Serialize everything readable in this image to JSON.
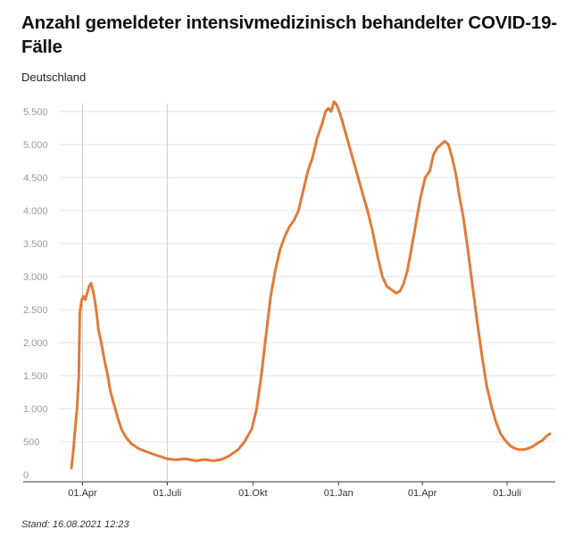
{
  "header": {
    "title": "Anzahl gemeldeter intensivmedizinisch behandelter COVID-19-Fälle",
    "subtitle": "Deutschland"
  },
  "footer": {
    "source": "Stand: 16.08.2021 12:23"
  },
  "colors": {
    "line": "#e07b3a",
    "grid": "#e4e4e4",
    "axis": "#333333",
    "marker": "#cccccc"
  },
  "chart_data": {
    "type": "line",
    "title": "Anzahl gemeldeter intensivmedizinisch behandelter COVID-19-Fälle",
    "subtitle": "Deutschland",
    "xlabel": "",
    "ylabel": "",
    "ylim": [
      0,
      5500
    ],
    "grid": true,
    "yticks": [
      {
        "value": 0,
        "label": "0"
      },
      {
        "value": 500,
        "label": "500"
      },
      {
        "value": 1000,
        "label": "1.000"
      },
      {
        "value": 1500,
        "label": "1.500"
      },
      {
        "value": 2000,
        "label": "2.000"
      },
      {
        "value": 2500,
        "label": "2.500"
      },
      {
        "value": 3000,
        "label": "3.000"
      },
      {
        "value": 3500,
        "label": "3.500"
      },
      {
        "value": 4000,
        "label": "4.000"
      },
      {
        "value": 4500,
        "label": "4.500"
      },
      {
        "value": 5000,
        "label": "5.000"
      },
      {
        "value": 5500,
        "label": "5.500"
      }
    ],
    "xticks": [
      {
        "date": "2020-04-01",
        "label": "01.Apr"
      },
      {
        "date": "2020-07-01",
        "label": "01.Juli"
      },
      {
        "date": "2020-10-01",
        "label": "01.Okt"
      },
      {
        "date": "2021-01-01",
        "label": "01.Jan"
      },
      {
        "date": "2021-04-01",
        "label": "01.Apr"
      },
      {
        "date": "2021-07-01",
        "label": "01.Juli"
      }
    ],
    "xlim": [
      "2020-03-20",
      "2021-08-16"
    ],
    "markers": [
      "2020-04-01",
      "2020-07-01"
    ],
    "series": [
      {
        "points": [
          [
            "2020-03-20",
            100
          ],
          [
            "2020-03-22",
            350
          ],
          [
            "2020-03-24",
            700
          ],
          [
            "2020-03-26",
            1000
          ],
          [
            "2020-03-28",
            1500
          ],
          [
            "2020-03-29",
            2450
          ],
          [
            "2020-03-31",
            2650
          ],
          [
            "2020-04-02",
            2700
          ],
          [
            "2020-04-04",
            2650
          ],
          [
            "2020-04-06",
            2750
          ],
          [
            "2020-04-08",
            2850
          ],
          [
            "2020-04-10",
            2900
          ],
          [
            "2020-04-12",
            2800
          ],
          [
            "2020-04-14",
            2650
          ],
          [
            "2020-04-16",
            2450
          ],
          [
            "2020-04-18",
            2200
          ],
          [
            "2020-04-21",
            2000
          ],
          [
            "2020-04-25",
            1700
          ],
          [
            "2020-04-28",
            1500
          ],
          [
            "2020-05-01",
            1250
          ],
          [
            "2020-05-05",
            1050
          ],
          [
            "2020-05-09",
            850
          ],
          [
            "2020-05-13",
            680
          ],
          [
            "2020-05-18",
            560
          ],
          [
            "2020-05-24",
            460
          ],
          [
            "2020-06-01",
            390
          ],
          [
            "2020-06-10",
            340
          ],
          [
            "2020-06-20",
            290
          ],
          [
            "2020-07-01",
            240
          ],
          [
            "2020-07-10",
            225
          ],
          [
            "2020-07-20",
            240
          ],
          [
            "2020-08-01",
            210
          ],
          [
            "2020-08-10",
            230
          ],
          [
            "2020-08-20",
            210
          ],
          [
            "2020-08-28",
            230
          ],
          [
            "2020-09-05",
            280
          ],
          [
            "2020-09-15",
            380
          ],
          [
            "2020-09-22",
            500
          ],
          [
            "2020-09-30",
            700
          ],
          [
            "2020-10-05",
            1000
          ],
          [
            "2020-10-10",
            1500
          ],
          [
            "2020-10-15",
            2100
          ],
          [
            "2020-10-20",
            2700
          ],
          [
            "2020-10-25",
            3100
          ],
          [
            "2020-10-30",
            3400
          ],
          [
            "2020-11-04",
            3600
          ],
          [
            "2020-11-09",
            3750
          ],
          [
            "2020-11-14",
            3850
          ],
          [
            "2020-11-19",
            4000
          ],
          [
            "2020-11-24",
            4300
          ],
          [
            "2020-11-29",
            4600
          ],
          [
            "2020-12-04",
            4800
          ],
          [
            "2020-12-09",
            5100
          ],
          [
            "2020-12-14",
            5300
          ],
          [
            "2020-12-18",
            5500
          ],
          [
            "2020-12-21",
            5550
          ],
          [
            "2020-12-24",
            5500
          ],
          [
            "2020-12-27",
            5650
          ],
          [
            "2020-12-30",
            5600
          ],
          [
            "2021-01-03",
            5450
          ],
          [
            "2021-01-08",
            5200
          ],
          [
            "2021-01-13",
            4950
          ],
          [
            "2021-01-18",
            4700
          ],
          [
            "2021-01-23",
            4450
          ],
          [
            "2021-01-28",
            4200
          ],
          [
            "2021-02-02",
            3950
          ],
          [
            "2021-02-07",
            3650
          ],
          [
            "2021-02-12",
            3300
          ],
          [
            "2021-02-17",
            3000
          ],
          [
            "2021-02-22",
            2850
          ],
          [
            "2021-02-27",
            2800
          ],
          [
            "2021-03-04",
            2750
          ],
          [
            "2021-03-08",
            2780
          ],
          [
            "2021-03-12",
            2900
          ],
          [
            "2021-03-16",
            3100
          ],
          [
            "2021-03-20",
            3400
          ],
          [
            "2021-03-25",
            3800
          ],
          [
            "2021-03-30",
            4200
          ],
          [
            "2021-04-04",
            4500
          ],
          [
            "2021-04-09",
            4600
          ],
          [
            "2021-04-13",
            4850
          ],
          [
            "2021-04-17",
            4950
          ],
          [
            "2021-04-21",
            5000
          ],
          [
            "2021-04-25",
            5050
          ],
          [
            "2021-04-29",
            5000
          ],
          [
            "2021-05-03",
            4800
          ],
          [
            "2021-05-07",
            4550
          ],
          [
            "2021-05-11",
            4200
          ],
          [
            "2021-05-15",
            3900
          ],
          [
            "2021-05-20",
            3400
          ],
          [
            "2021-05-25",
            2850
          ],
          [
            "2021-05-30",
            2300
          ],
          [
            "2021-06-04",
            1800
          ],
          [
            "2021-06-09",
            1350
          ],
          [
            "2021-06-14",
            1050
          ],
          [
            "2021-06-19",
            800
          ],
          [
            "2021-06-24",
            620
          ],
          [
            "2021-06-29",
            520
          ],
          [
            "2021-07-04",
            440
          ],
          [
            "2021-07-09",
            400
          ],
          [
            "2021-07-14",
            380
          ],
          [
            "2021-07-19",
            380
          ],
          [
            "2021-07-24",
            400
          ],
          [
            "2021-07-29",
            430
          ],
          [
            "2021-08-03",
            480
          ],
          [
            "2021-08-08",
            520
          ],
          [
            "2021-08-12",
            580
          ],
          [
            "2021-08-16",
            620
          ]
        ]
      }
    ]
  }
}
